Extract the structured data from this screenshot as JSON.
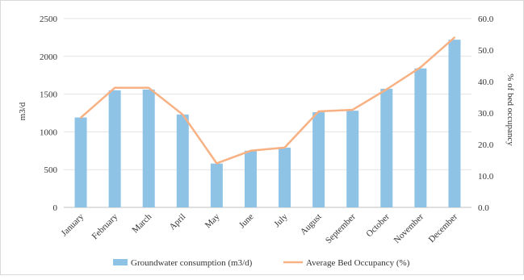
{
  "chart_data": {
    "type": "bar+line",
    "categories": [
      "January",
      "February",
      "March",
      "April",
      "May",
      "June",
      "July",
      "August",
      "September",
      "October",
      "November",
      "December"
    ],
    "series": [
      {
        "name": "Groundwater consumption (m3/d)",
        "kind": "bar",
        "axis": "left",
        "color": "#8ec3e6",
        "values": [
          1190,
          1550,
          1560,
          1230,
          580,
          750,
          790,
          1260,
          1280,
          1570,
          1840,
          2220
        ]
      },
      {
        "name": "Average Bed Occupancy (%)",
        "kind": "line",
        "axis": "right",
        "color": "#f7b183",
        "values": [
          28.5,
          38.0,
          38.0,
          29.5,
          14.0,
          18.0,
          19.0,
          30.5,
          31.0,
          37.5,
          44.5,
          54.0
        ]
      }
    ],
    "y_left": {
      "label": "m3/d",
      "ylim": [
        0,
        2500
      ],
      "ticks": [
        "0",
        "500",
        "1000",
        "1500",
        "2000",
        "2500"
      ]
    },
    "y_right": {
      "label": "% of bed occupancy",
      "ylim": [
        0,
        60
      ],
      "ticks": [
        "0.0",
        "10.0",
        "20.0",
        "30.0",
        "40.0",
        "50.0",
        "60.0"
      ]
    },
    "grid": true,
    "legend": "bottom"
  }
}
